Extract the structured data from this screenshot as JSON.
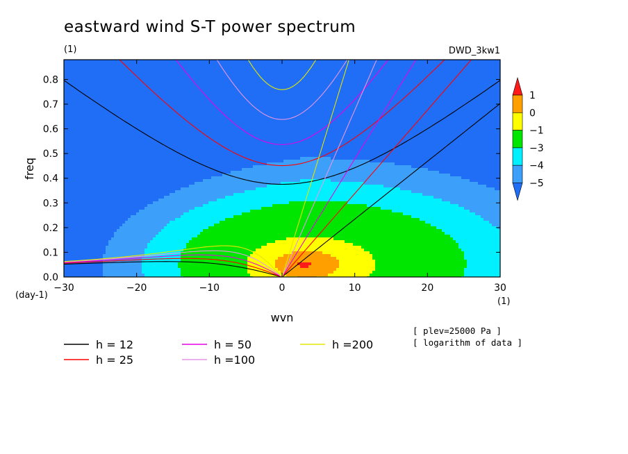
{
  "header": {
    "title": "eastward wind S-T power spectrum",
    "units_label": "(1)",
    "run_label": "DWD_3kw1"
  },
  "notes": [
    "[ plev=25000 Pa ]",
    "[ logarithm of data ]"
  ],
  "colors": {
    "lt_-5": "#1f6ef5",
    "-5_-4": "#3ca0fa",
    "-4_-3": "#00f0ff",
    "-3_-1": "#00e600",
    "-1_0": "#ffff00",
    "0_1": "#ffa000",
    "gt_1": "#ff1a1a"
  },
  "chart_data": {
    "type": "heatmap",
    "xlabel": "wvn",
    "ylabel": "freq",
    "x_unit_label": "(1)",
    "y_unit_label": "(day-1)",
    "xlim": [
      -30,
      30
    ],
    "ylim": [
      0,
      0.88
    ],
    "xticks": [
      -30,
      -20,
      -10,
      0,
      10,
      20,
      30
    ],
    "yticks": [
      0.0,
      0.1,
      0.2,
      0.3,
      0.4,
      0.5,
      0.6,
      0.7,
      0.8
    ],
    "colorbar": {
      "labels": [
        "1",
        "0",
        "-1",
        "-3",
        "-4",
        "-5"
      ],
      "bands": [
        {
          "range": ">1",
          "color": "#ff1a1a"
        },
        {
          "range": "0 to 1",
          "color": "#ffa000"
        },
        {
          "range": "-1 to 0",
          "color": "#ffff00"
        },
        {
          "range": "-3 to -1",
          "color": "#00e600"
        },
        {
          "range": "-4 to -3",
          "color": "#00f0ff"
        },
        {
          "range": "-5 to -4",
          "color": "#3ca0fa"
        },
        {
          "range": "<-5",
          "color": "#1f6ef5"
        }
      ]
    },
    "dispersion_curves": [
      {
        "name": "h = 12",
        "h": 12,
        "color": "#000000"
      },
      {
        "name": "h = 25",
        "h": 25,
        "color": "#ff0000"
      },
      {
        "name": "h = 50",
        "h": 50,
        "color": "#e600e6"
      },
      {
        "name": "h =100",
        "h": 100,
        "color": "#e696e6"
      },
      {
        "name": "h =200",
        "h": 200,
        "color": "#e6e600"
      }
    ],
    "legend_position": "bottom",
    "note": "shaded: log10 of eastward wind power at plev=25000 Pa; peak near wvn 3, freq 0.05"
  }
}
